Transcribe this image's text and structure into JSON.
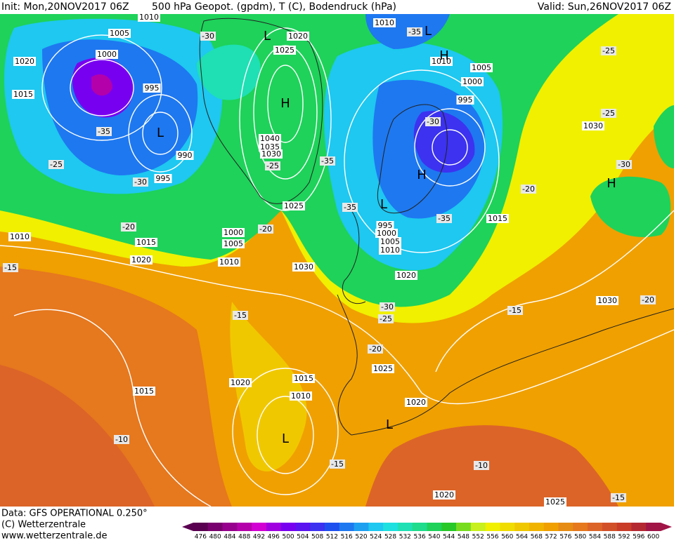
{
  "header": {
    "left": "Init: Mon,20NOV2017 06Z",
    "middle": "500 hPa Geopot. (gpdm), T (C), Bodendruck (hPa)",
    "right": "Valid: Sun,26NOV2017 06Z"
  },
  "footer": {
    "data": "Data: GFS OPERATIONAL 0.250°",
    "copyright": "(C) Wetterzentrale",
    "url": "www.wetterzentrale.de"
  },
  "legend": {
    "values": [
      476,
      480,
      484,
      488,
      492,
      496,
      500,
      504,
      508,
      512,
      516,
      520,
      524,
      528,
      532,
      536,
      540,
      544,
      548,
      552,
      556,
      560,
      564,
      568,
      572,
      576,
      580,
      584,
      588,
      592,
      596,
      600
    ],
    "colors": [
      "#5a0050",
      "#78006e",
      "#96008c",
      "#b400aa",
      "#d200d2",
      "#a000e0",
      "#7800f0",
      "#5a14f0",
      "#3c32f0",
      "#1e50f0",
      "#1e78f0",
      "#1ea0f0",
      "#1ec8f0",
      "#1ee0e0",
      "#1ee0b4",
      "#1edc8c",
      "#1ed25a",
      "#28c828",
      "#78dc1e",
      "#c8f01e",
      "#f0f000",
      "#f0dc00",
      "#f0c800",
      "#f0b400",
      "#f0a000",
      "#e68c14",
      "#e6781e",
      "#dc6428",
      "#d25028",
      "#c83c28",
      "#b42832",
      "#a01446"
    ]
  },
  "map": {
    "pressure_labels": [
      "1010",
      "1005",
      "1000",
      "1020",
      "1015",
      "995",
      "990",
      "995",
      "1020",
      "1025",
      "1040",
      "1035",
      "1030",
      "1025",
      "1000",
      "1005",
      "1010",
      "1015",
      "1010",
      "1020",
      "1030",
      "1010",
      "1010",
      "1005",
      "1000",
      "995",
      "995",
      "1000",
      "1005",
      "1010",
      "1015",
      "1020",
      "1030",
      "1030",
      "1025",
      "1020",
      "1015",
      "1010",
      "1015",
      "1020",
      "1020",
      "1025"
    ],
    "temperature_labels": [
      "-30",
      "-35",
      "-25",
      "-25",
      "-35",
      "-25",
      "-30",
      "-25",
      "-35",
      "-30",
      "-35",
      "-35",
      "-30",
      "-20",
      "-20",
      "-20",
      "-15",
      "-15",
      "-30",
      "-25",
      "-20",
      "-15",
      "-20",
      "-10",
      "-15",
      "-10",
      "-15"
    ],
    "centers": [
      "L",
      "L",
      "H",
      "H",
      "L",
      "H",
      "L",
      "H",
      "L",
      "L"
    ]
  }
}
